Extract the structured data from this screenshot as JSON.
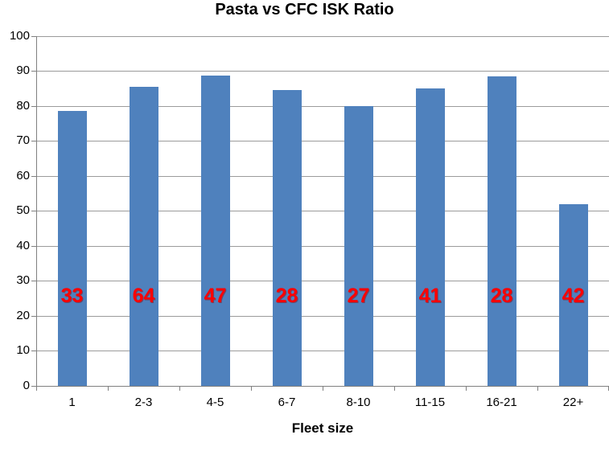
{
  "title": "Pasta vs CFC ISK Ratio",
  "chart_data": {
    "type": "bar",
    "title": "Pasta vs CFC ISK Ratio",
    "xlabel": "Fleet size",
    "ylabel": "",
    "categories": [
      "1",
      "2-3",
      "4-5",
      "6-7",
      "8-10",
      "11-15",
      "16-21",
      "22+"
    ],
    "values": [
      78.6,
      85.5,
      88.7,
      84.4,
      80,
      85,
      88.3,
      51.8
    ],
    "bar_labels": [
      "33",
      "64",
      "47",
      "28",
      "27",
      "41",
      "28",
      "42"
    ],
    "yticks": [
      0,
      10,
      20,
      30,
      40,
      50,
      60,
      70,
      80,
      90,
      100
    ],
    "ylim": [
      0,
      100
    ],
    "grid": true,
    "legend": "none",
    "colors": {
      "bar": "#4F81BD",
      "bar_label": "#FF0000",
      "gridline": "#9B9B9B",
      "axis_line": "#808080",
      "text": "#000000",
      "background": "#FFFFFF"
    }
  }
}
